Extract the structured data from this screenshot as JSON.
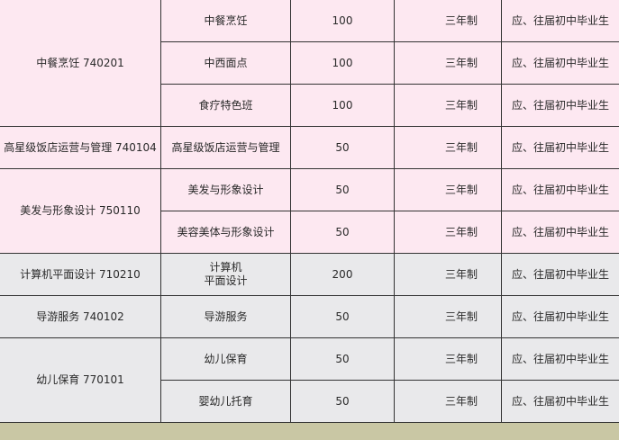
{
  "groups": [
    {
      "major": "中餐烹饪 740201",
      "color": "#fde8f1",
      "rows": [
        {
          "direction": "中餐烹饪",
          "quota": "100",
          "length": "三年制",
          "target": "应、往届初中毕业生"
        },
        {
          "direction": "中西面点",
          "quota": "100",
          "length": "三年制",
          "target": "应、往届初中毕业生"
        },
        {
          "direction": "食疗特色班",
          "quota": "100",
          "length": "三年制",
          "target": "应、往届初中毕业生"
        }
      ]
    },
    {
      "major": "高星级饭店运营与管理 740104",
      "color": "#fde8f1",
      "rows": [
        {
          "direction": "高星级饭店运营与管理",
          "quota": "50",
          "length": "三年制",
          "target": "应、往届初中毕业生"
        }
      ]
    },
    {
      "major": "美发与形象设计 750110",
      "color": "#fde8f1",
      "rows": [
        {
          "direction": "美发与形象设计",
          "quota": "50",
          "length": "三年制",
          "target": "应、往届初中毕业生"
        },
        {
          "direction": "美容美体与形象设计",
          "quota": "50",
          "length": "三年制",
          "target": "应、往届初中毕业生"
        }
      ]
    },
    {
      "major": "计算机平面设计 710210",
      "color": "#e9e9eb",
      "rows": [
        {
          "direction": "计算机\n平面设计",
          "quota": "200",
          "length": "三年制",
          "target": "应、往届初中毕业生"
        }
      ]
    },
    {
      "major": "导游服务 740102",
      "color": "#e9e9eb",
      "rows": [
        {
          "direction": "导游服务",
          "quota": "50",
          "length": "三年制",
          "target": "应、往届初中毕业生"
        }
      ]
    },
    {
      "major": "幼儿保育 770101",
      "color": "#e9e9eb",
      "rows": [
        {
          "direction": "幼儿保育",
          "quota": "50",
          "length": "三年制",
          "target": "应、往届初中毕业生"
        },
        {
          "direction": "婴幼儿托育",
          "quota": "50",
          "length": "三年制",
          "target": "应、往届初中毕业生"
        }
      ]
    }
  ]
}
